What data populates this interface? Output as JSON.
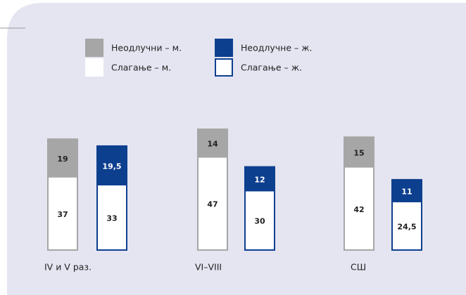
{
  "chart_data": {
    "type": "bar",
    "categories": [
      "IV и V раз.",
      "VI–VIII",
      "СШ"
    ],
    "series": [
      {
        "name": "Слагање – м.",
        "color": "#ffffff",
        "values": [
          37,
          47,
          42
        ]
      },
      {
        "name": "Неодлучни – м.",
        "color": "#a6a6a6",
        "values": [
          19,
          14,
          15
        ]
      },
      {
        "name": "Слагање – ж.",
        "color": "#ffffff",
        "values": [
          33,
          30,
          24.5
        ],
        "value_labels": [
          "33",
          "30",
          "24,5"
        ]
      },
      {
        "name": "Неодлучне – ж.",
        "color": "#0d3f8f",
        "values": [
          19.5,
          12,
          11
        ],
        "value_labels": [
          "19,5",
          "12",
          "11"
        ]
      }
    ]
  }
}
